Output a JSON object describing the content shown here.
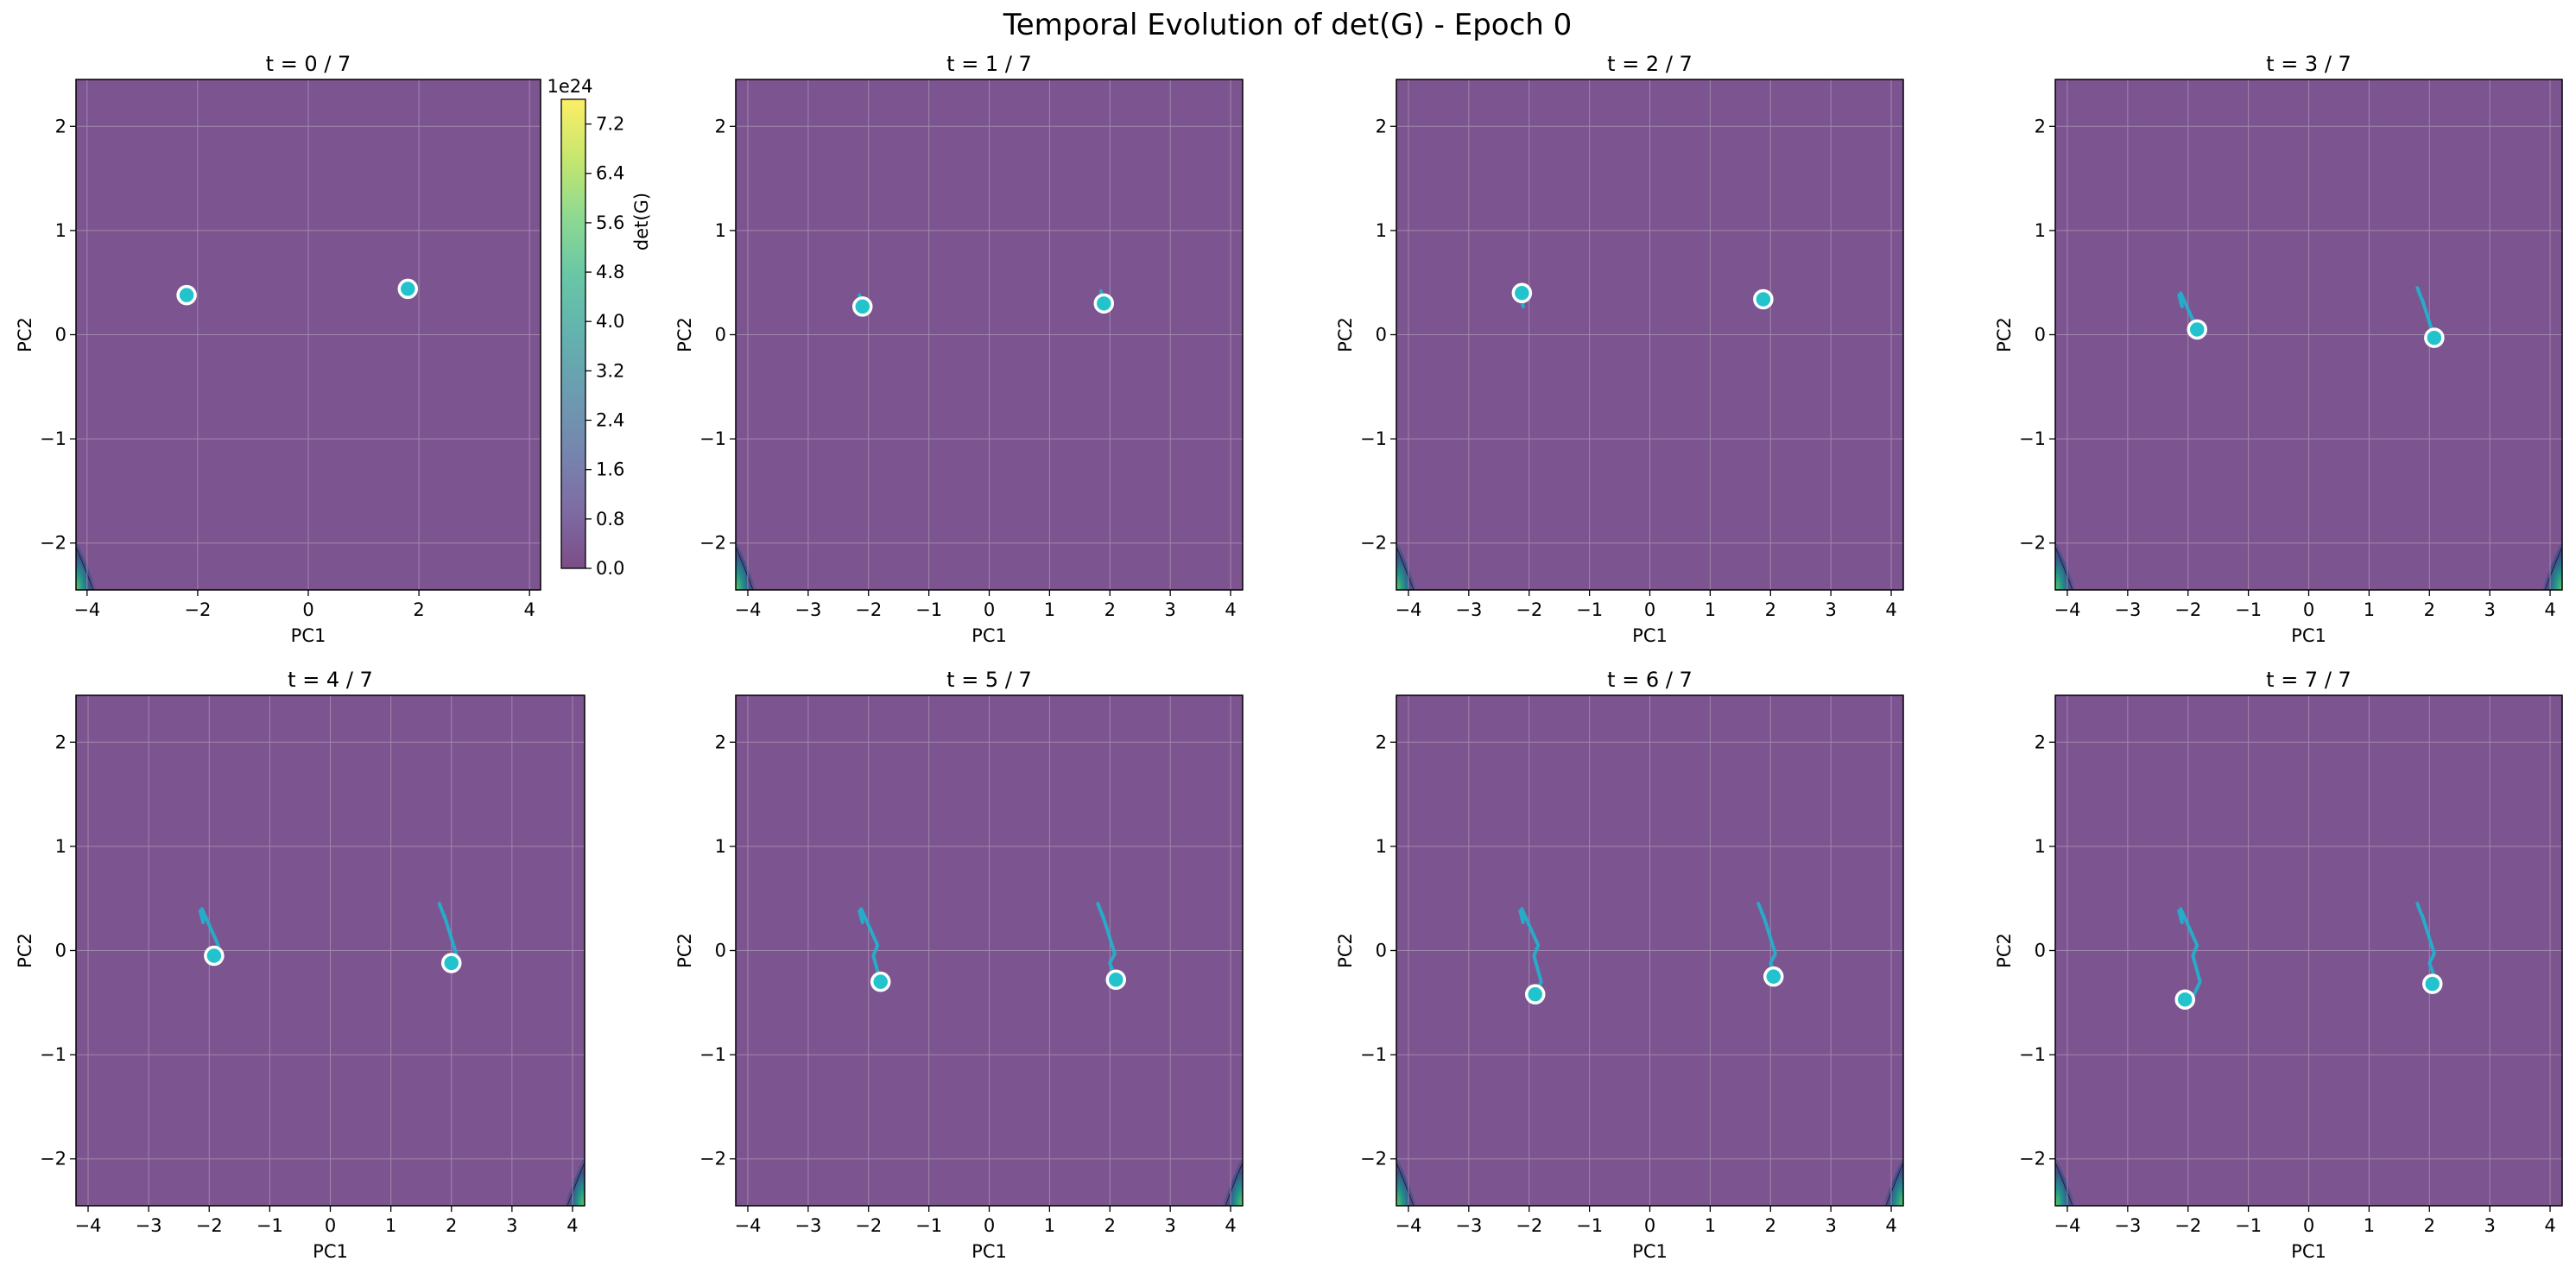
{
  "figure": {
    "title": "Temporal Evolution of det(G) - Epoch 0"
  },
  "colors": {
    "background_fill": "#7c5490",
    "grid": "#a188ad",
    "trajectory": "#1fb4cf",
    "marker_fill": "#22c3cd",
    "marker_edge": "#ffffff",
    "viridis": [
      "#440154",
      "#472d7b",
      "#3b528b",
      "#2c728e",
      "#21918c",
      "#28ae80",
      "#5ec962",
      "#addc30",
      "#fde725"
    ]
  },
  "colorbar": {
    "label": "det(G)",
    "offset_text": "1e24",
    "ticks": [
      "0.0",
      "0.8",
      "1.6",
      "2.4",
      "3.2",
      "4.0",
      "4.8",
      "5.6",
      "6.4",
      "7.2"
    ],
    "range": [
      0,
      7.6
    ]
  },
  "chart_data": [
    {
      "type": "scatter",
      "title": "t = 0 / 7",
      "xlabel": "PC1",
      "ylabel": "PC2",
      "xlim": [
        -4.2,
        4.2
      ],
      "ylim": [
        -2.45,
        2.45
      ],
      "xticks": [
        "−4",
        "−2",
        "0",
        "2",
        "4"
      ],
      "yticks": [
        "−2",
        "−1",
        "0",
        "1",
        "2"
      ],
      "grid": true,
      "hot_corners": [
        "bottom-left"
      ],
      "series": [
        {
          "trajectory": [
            [
              -2.2,
              0.38
            ]
          ],
          "current": [
            -2.2,
            0.38
          ]
        },
        {
          "trajectory": [
            [
              1.8,
              0.44
            ]
          ],
          "current": [
            1.8,
            0.44
          ]
        }
      ]
    },
    {
      "type": "scatter",
      "title": "t = 1 / 7",
      "xlabel": "PC1",
      "ylabel": "PC2",
      "xlim": [
        -4.2,
        4.2
      ],
      "ylim": [
        -2.45,
        2.45
      ],
      "xticks": [
        "−4",
        "−3",
        "−2",
        "−1",
        "0",
        "1",
        "2",
        "3",
        "4"
      ],
      "yticks": [
        "−2",
        "−1",
        "0",
        "1",
        "2"
      ],
      "grid": true,
      "hot_corners": [
        "bottom-left"
      ],
      "series": [
        {
          "trajectory": [
            [
              -2.15,
              0.38
            ],
            [
              -2.1,
              0.27
            ]
          ],
          "current": [
            -2.1,
            0.27
          ]
        },
        {
          "trajectory": [
            [
              1.85,
              0.42
            ],
            [
              1.9,
              0.3
            ]
          ],
          "current": [
            1.9,
            0.3
          ]
        }
      ]
    },
    {
      "type": "scatter",
      "title": "t = 2 / 7",
      "xlabel": "PC1",
      "ylabel": "PC2",
      "xlim": [
        -4.2,
        4.2
      ],
      "ylim": [
        -2.45,
        2.45
      ],
      "xticks": [
        "−4",
        "−3",
        "−2",
        "−1",
        "0",
        "1",
        "2",
        "3",
        "4"
      ],
      "yticks": [
        "−2",
        "−1",
        "0",
        "1",
        "2"
      ],
      "grid": true,
      "hot_corners": [
        "bottom-left"
      ],
      "series": [
        {
          "trajectory": [
            [
              -2.15,
              0.38
            ],
            [
              -2.1,
              0.27
            ],
            [
              -2.12,
              0.4
            ]
          ],
          "current": [
            -2.12,
            0.4
          ]
        },
        {
          "trajectory": [
            [
              1.85,
              0.42
            ],
            [
              1.9,
              0.3
            ],
            [
              1.88,
              0.34
            ]
          ],
          "current": [
            1.88,
            0.34
          ]
        }
      ]
    },
    {
      "type": "scatter",
      "title": "t = 3 / 7",
      "xlabel": "PC1",
      "ylabel": "PC2",
      "xlim": [
        -4.2,
        4.2
      ],
      "ylim": [
        -2.45,
        2.45
      ],
      "xticks": [
        "−4",
        "−3",
        "−2",
        "−1",
        "0",
        "1",
        "2",
        "3",
        "4"
      ],
      "yticks": [
        "−2",
        "−1",
        "0",
        "1",
        "2"
      ],
      "grid": true,
      "hot_corners": [
        "bottom-left",
        "bottom-right"
      ],
      "series": [
        {
          "trajectory": [
            [
              -2.15,
              0.38
            ],
            [
              -2.1,
              0.27
            ],
            [
              -2.12,
              0.4
            ],
            [
              -1.85,
              0.05
            ]
          ],
          "current": [
            -1.85,
            0.05
          ]
        },
        {
          "trajectory": [
            [
              1.8,
              0.45
            ],
            [
              1.9,
              0.3
            ],
            [
              1.88,
              0.34
            ],
            [
              2.08,
              -0.03
            ]
          ],
          "current": [
            2.08,
            -0.03
          ]
        }
      ]
    },
    {
      "type": "scatter",
      "title": "t = 4 / 7",
      "xlabel": "PC1",
      "ylabel": "PC2",
      "xlim": [
        -4.2,
        4.2
      ],
      "ylim": [
        -2.45,
        2.45
      ],
      "xticks": [
        "−4",
        "−3",
        "−2",
        "−1",
        "0",
        "1",
        "2",
        "3",
        "4"
      ],
      "yticks": [
        "−2",
        "−1",
        "0",
        "1",
        "2"
      ],
      "grid": true,
      "hot_corners": [
        "bottom-right"
      ],
      "series": [
        {
          "trajectory": [
            [
              -2.15,
              0.38
            ],
            [
              -2.1,
              0.27
            ],
            [
              -2.12,
              0.4
            ],
            [
              -1.85,
              0.05
            ],
            [
              -1.92,
              -0.05
            ]
          ],
          "current": [
            -1.92,
            -0.05
          ]
        },
        {
          "trajectory": [
            [
              1.8,
              0.45
            ],
            [
              1.9,
              0.3
            ],
            [
              1.88,
              0.34
            ],
            [
              2.08,
              -0.03
            ],
            [
              2.0,
              -0.12
            ]
          ],
          "current": [
            2.0,
            -0.12
          ]
        }
      ]
    },
    {
      "type": "scatter",
      "title": "t = 5 / 7",
      "xlabel": "PC1",
      "ylabel": "PC2",
      "xlim": [
        -4.2,
        4.2
      ],
      "ylim": [
        -2.45,
        2.45
      ],
      "xticks": [
        "−4",
        "−3",
        "−2",
        "−1",
        "0",
        "1",
        "2",
        "3",
        "4"
      ],
      "yticks": [
        "−2",
        "−1",
        "0",
        "1",
        "2"
      ],
      "grid": true,
      "hot_corners": [
        "bottom-right"
      ],
      "series": [
        {
          "trajectory": [
            [
              -2.15,
              0.38
            ],
            [
              -2.1,
              0.27
            ],
            [
              -2.12,
              0.4
            ],
            [
              -1.85,
              0.05
            ],
            [
              -1.92,
              -0.05
            ],
            [
              -1.8,
              -0.3
            ]
          ],
          "current": [
            -1.8,
            -0.3
          ]
        },
        {
          "trajectory": [
            [
              1.8,
              0.45
            ],
            [
              1.9,
              0.3
            ],
            [
              1.88,
              0.34
            ],
            [
              2.08,
              -0.03
            ],
            [
              2.0,
              -0.12
            ],
            [
              2.1,
              -0.28
            ]
          ],
          "current": [
            2.1,
            -0.28
          ]
        }
      ]
    },
    {
      "type": "scatter",
      "title": "t = 6 / 7",
      "xlabel": "PC1",
      "ylabel": "PC2",
      "xlim": [
        -4.2,
        4.2
      ],
      "ylim": [
        -2.45,
        2.45
      ],
      "xticks": [
        "−4",
        "−3",
        "−2",
        "−1",
        "0",
        "1",
        "2",
        "3",
        "4"
      ],
      "yticks": [
        "−2",
        "−1",
        "0",
        "1",
        "2"
      ],
      "grid": true,
      "hot_corners": [
        "bottom-left",
        "bottom-right"
      ],
      "series": [
        {
          "trajectory": [
            [
              -2.15,
              0.38
            ],
            [
              -2.1,
              0.27
            ],
            [
              -2.12,
              0.4
            ],
            [
              -1.85,
              0.05
            ],
            [
              -1.92,
              -0.05
            ],
            [
              -1.8,
              -0.3
            ],
            [
              -1.9,
              -0.42
            ]
          ],
          "current": [
            -1.9,
            -0.42
          ]
        },
        {
          "trajectory": [
            [
              1.8,
              0.45
            ],
            [
              1.9,
              0.3
            ],
            [
              1.88,
              0.34
            ],
            [
              2.08,
              -0.03
            ],
            [
              2.0,
              -0.12
            ],
            [
              2.1,
              -0.28
            ],
            [
              2.05,
              -0.25
            ]
          ],
          "current": [
            2.05,
            -0.25
          ]
        }
      ]
    },
    {
      "type": "scatter",
      "title": "t = 7 / 7",
      "xlabel": "PC1",
      "ylabel": "PC2",
      "xlim": [
        -4.2,
        4.2
      ],
      "ylim": [
        -2.45,
        2.45
      ],
      "xticks": [
        "−4",
        "−3",
        "−2",
        "−1",
        "0",
        "1",
        "2",
        "3",
        "4"
      ],
      "yticks": [
        "−2",
        "−1",
        "0",
        "1",
        "2"
      ],
      "grid": true,
      "hot_corners": [
        "bottom-left"
      ],
      "series": [
        {
          "trajectory": [
            [
              -2.15,
              0.38
            ],
            [
              -2.1,
              0.27
            ],
            [
              -2.12,
              0.4
            ],
            [
              -1.85,
              0.05
            ],
            [
              -1.92,
              -0.05
            ],
            [
              -1.8,
              -0.3
            ],
            [
              -1.9,
              -0.42
            ],
            [
              -2.05,
              -0.47
            ]
          ],
          "current": [
            -2.05,
            -0.47
          ]
        },
        {
          "trajectory": [
            [
              1.8,
              0.45
            ],
            [
              1.9,
              0.3
            ],
            [
              1.88,
              0.34
            ],
            [
              2.08,
              -0.03
            ],
            [
              2.0,
              -0.12
            ],
            [
              2.1,
              -0.28
            ],
            [
              2.05,
              -0.25
            ],
            [
              2.05,
              -0.32
            ]
          ],
          "current": [
            2.05,
            -0.32
          ]
        }
      ]
    }
  ]
}
